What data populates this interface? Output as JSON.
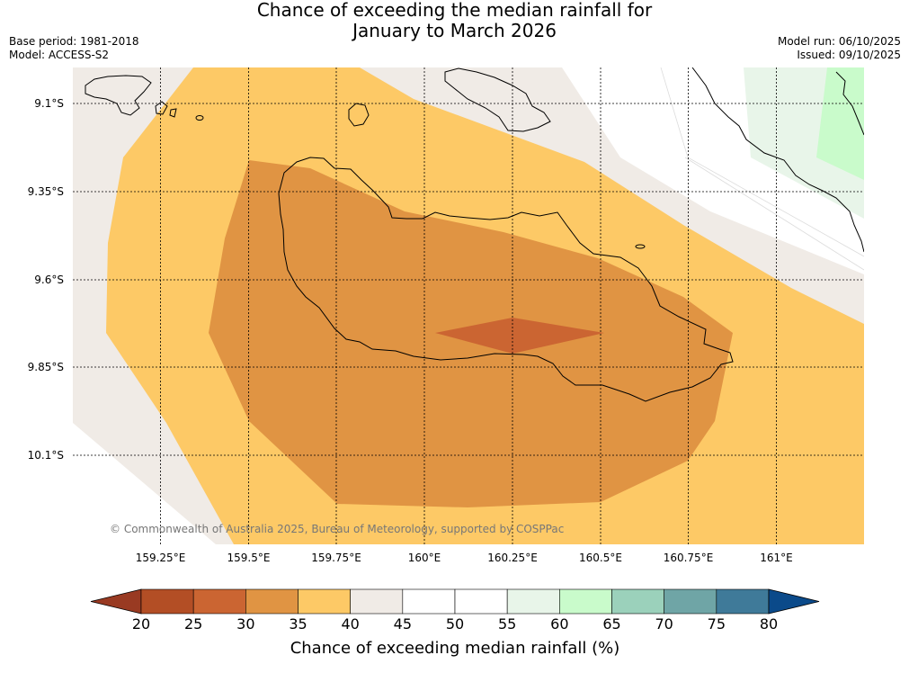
{
  "title": {
    "line1": "Chance of exceeding the median rainfall for",
    "line2": "January to March 2026"
  },
  "meta": {
    "base_period": "Base period: 1981-2018",
    "model": "Model: ACCESS-S2",
    "model_run": "Model run: 06/10/2025",
    "issued": "Issued: 09/10/2025"
  },
  "map": {
    "lat_labels": [
      "9.1°S",
      "9.35°S",
      "9.6°S",
      "9.85°S",
      "10.1°S"
    ],
    "lon_labels": [
      "159.25°E",
      "159.5°E",
      "159.75°E",
      "160°E",
      "160.25°E",
      "160.5°E",
      "160.75°E",
      "161°E"
    ],
    "copyright": "© Commonwealth of Australia 2025, Bureau of Meteorology, supported by COSPPac"
  },
  "colorbar": {
    "title": "Chance of exceeding median rainfall (%)",
    "tick_labels": [
      "20",
      "25",
      "30",
      "35",
      "40",
      "45",
      "50",
      "55",
      "60",
      "65",
      "70",
      "75",
      "80"
    ],
    "under_color": "#993a22",
    "over_color": "#0b4a8a",
    "colors": [
      "#b34e25",
      "#cb6532",
      "#e09443",
      "#fdc966",
      "#f0ebe6",
      "#ffffff",
      "#ffffff",
      "#e8f5e9",
      "#c9fbcb",
      "#9bd1bb",
      "#6fa5a6",
      "#3f7a99"
    ]
  },
  "palette": {
    "c25_30": "#cb6532",
    "c30_35": "#e09443",
    "c35_40": "#fdc966",
    "c40_45": "#f0ebe6",
    "c55_60": "#e8f5e9",
    "c60_65": "#c9fbcb"
  }
}
